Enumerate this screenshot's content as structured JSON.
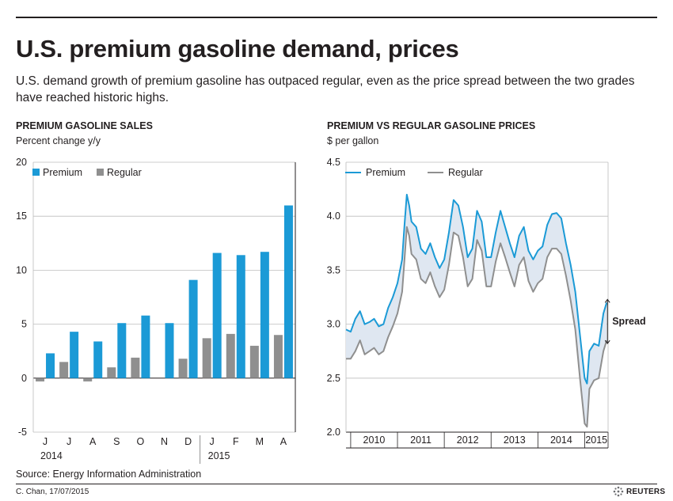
{
  "header": {
    "title": "U.S. premium gasoline demand, prices",
    "subtitle": "U.S. demand growth of premium gasoline has outpaced regular, even as the price spread between the two grades have reached historic highs."
  },
  "footer": {
    "source": "Source: Energy Information Administration",
    "credit": "C. Chan, 17/07/2015",
    "logo_text": "REUTERS"
  },
  "colors": {
    "premium": "#1b9ad6",
    "regular": "#8f8f8f",
    "spread_fill": "#dfe7f1",
    "grid": "#bdbdbd"
  },
  "chart_data": [
    {
      "type": "bar",
      "title": "PREMIUM GASOLINE SALES",
      "ylabel": "Percent change y/y",
      "categories": [
        "J",
        "J",
        "A",
        "S",
        "O",
        "N",
        "D",
        "J",
        "F",
        "M",
        "A"
      ],
      "year_labels": [
        "2014",
        "2015"
      ],
      "ylim": [
        -5,
        20
      ],
      "yticks": [
        "20",
        "15",
        "10",
        "5",
        "0",
        "-5"
      ],
      "legend_placement": "top-left",
      "series": [
        {
          "name": "Premium",
          "values": [
            2.3,
            4.3,
            3.4,
            5.1,
            5.8,
            5.1,
            9.1,
            11.6,
            11.4,
            11.7,
            16.0
          ]
        },
        {
          "name": "Regular",
          "values": [
            -0.3,
            1.5,
            -0.3,
            1.0,
            1.9,
            0.0,
            1.8,
            3.7,
            4.1,
            3.0,
            4.0
          ]
        }
      ]
    },
    {
      "type": "line",
      "title": "PREMIUM VS REGULAR GASOLINE PRICES",
      "ylabel": "$ per gallon",
      "ylim": [
        2.0,
        4.5
      ],
      "yticks": [
        "4.5",
        "4.0",
        "3.5",
        "3.0",
        "2.5",
        "2.0"
      ],
      "xlim": [
        2009.9,
        2015.5
      ],
      "xticks": [
        "2010",
        "2011",
        "2012",
        "2013",
        "2014",
        "2015"
      ],
      "annotation": "Spread",
      "legend_placement": "top-left",
      "x": [
        2009.9,
        2010.0,
        2010.1,
        2010.2,
        2010.3,
        2010.4,
        2010.5,
        2010.6,
        2010.7,
        2010.8,
        2010.9,
        2011.0,
        2011.1,
        2011.15,
        2011.2,
        2011.25,
        2011.3,
        2011.4,
        2011.5,
        2011.6,
        2011.7,
        2011.8,
        2011.9,
        2012.0,
        2012.1,
        2012.2,
        2012.3,
        2012.4,
        2012.5,
        2012.6,
        2012.7,
        2012.8,
        2012.9,
        2013.0,
        2013.1,
        2013.2,
        2013.3,
        2013.4,
        2013.5,
        2013.6,
        2013.7,
        2013.8,
        2013.9,
        2014.0,
        2014.1,
        2014.2,
        2014.3,
        2014.4,
        2014.5,
        2014.6,
        2014.7,
        2014.8,
        2014.9,
        2015.0,
        2015.05,
        2015.1,
        2015.2,
        2015.3,
        2015.4,
        2015.47
      ],
      "series": [
        {
          "name": "Premium",
          "values": [
            2.95,
            2.93,
            3.05,
            3.12,
            3.0,
            3.02,
            3.05,
            2.98,
            3.0,
            3.15,
            3.25,
            3.38,
            3.6,
            3.92,
            4.2,
            4.1,
            3.95,
            3.9,
            3.7,
            3.65,
            3.75,
            3.62,
            3.52,
            3.6,
            3.85,
            4.15,
            4.1,
            3.9,
            3.62,
            3.7,
            4.05,
            3.95,
            3.62,
            3.62,
            3.85,
            4.05,
            3.9,
            3.75,
            3.62,
            3.82,
            3.9,
            3.68,
            3.6,
            3.68,
            3.72,
            3.92,
            4.02,
            4.03,
            3.98,
            3.75,
            3.55,
            3.3,
            2.9,
            2.5,
            2.45,
            2.75,
            2.82,
            2.8,
            3.1,
            3.2
          ]
        },
        {
          "name": "Regular",
          "values": [
            2.68,
            2.68,
            2.75,
            2.85,
            2.72,
            2.75,
            2.78,
            2.72,
            2.75,
            2.88,
            2.98,
            3.1,
            3.3,
            3.6,
            3.9,
            3.82,
            3.65,
            3.6,
            3.42,
            3.38,
            3.48,
            3.35,
            3.25,
            3.32,
            3.55,
            3.85,
            3.82,
            3.62,
            3.35,
            3.42,
            3.78,
            3.68,
            3.35,
            3.35,
            3.58,
            3.75,
            3.62,
            3.48,
            3.35,
            3.55,
            3.62,
            3.4,
            3.3,
            3.38,
            3.42,
            3.62,
            3.7,
            3.7,
            3.65,
            3.45,
            3.22,
            2.95,
            2.5,
            2.08,
            2.05,
            2.4,
            2.48,
            2.5,
            2.75,
            2.85
          ]
        }
      ]
    }
  ]
}
